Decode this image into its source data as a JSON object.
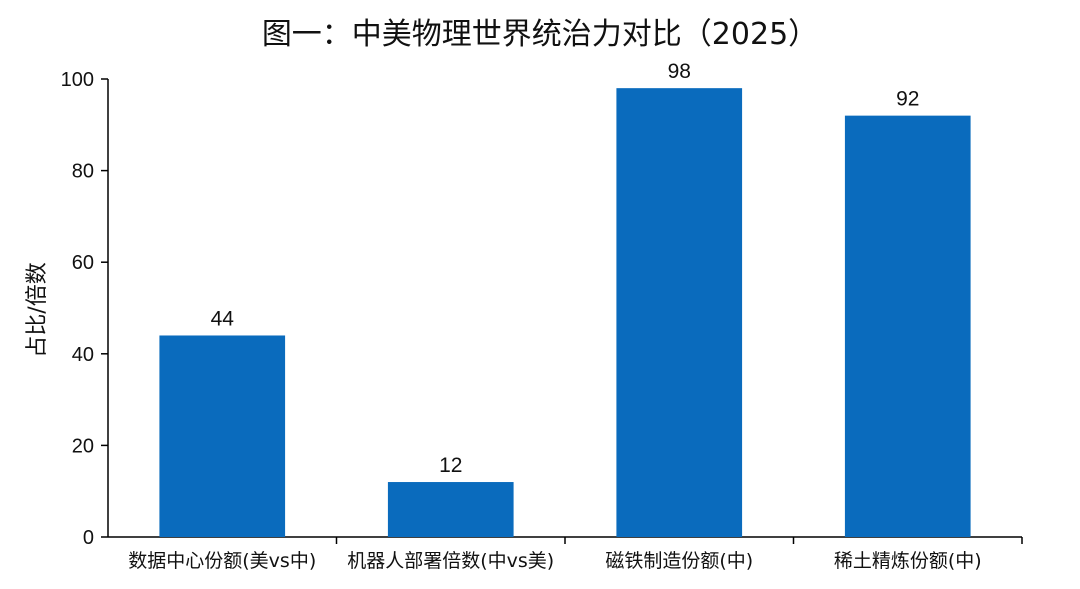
{
  "chart_data": {
    "type": "bar",
    "title": "图一：中美物理世界统治力对比（2025）",
    "xlabel": "",
    "ylabel": "占比/倍数",
    "categories": [
      "数据中心份额(美vs中)",
      "机器人部署倍数(中vs美)",
      "磁铁制造份额(中)",
      "稀土精炼份额(中)"
    ],
    "values": [
      44,
      12,
      98,
      92
    ],
    "data_labels": [
      "44",
      "12",
      "98",
      "92"
    ],
    "ylim": [
      0,
      100
    ],
    "yticks": [
      0,
      20,
      40,
      60,
      80,
      100
    ],
    "ytick_labels": [
      "0",
      "20",
      "40",
      "60",
      "80",
      "100"
    ],
    "grid": false,
    "legend": "none",
    "bar_color": "#0a6bbd",
    "axis_color": "#000000"
  }
}
